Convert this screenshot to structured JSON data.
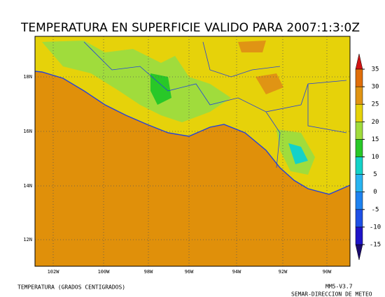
{
  "title": "TEMPERATURA EN SUPERFICIE VALIDO PARA 2007:1:3:0Z",
  "lat_labels": [
    "18N",
    "16N",
    "14N",
    "12N"
  ],
  "lon_labels": [
    "102W",
    "100W",
    "98W",
    "96W",
    "94W",
    "92W",
    "90W"
  ],
  "colorbar": {
    "levels": [
      -15,
      -10,
      -5,
      0,
      5,
      10,
      15,
      20,
      25,
      30,
      35
    ],
    "colors": [
      "#1a0a6e",
      "#1e14c8",
      "#1e50e6",
      "#1e82f0",
      "#28b4f0",
      "#14d2c8",
      "#28c828",
      "#a0dc3c",
      "#e6d20a",
      "#e09414",
      "#e06e0a",
      "#d21414"
    ]
  },
  "footer_left": "TEMPERATURA (GRADOS CENTIGRADOS)",
  "footer_right": [
    "MM5-V3.7",
    "SEMAR-DIRECCION DE METEO"
  ]
}
